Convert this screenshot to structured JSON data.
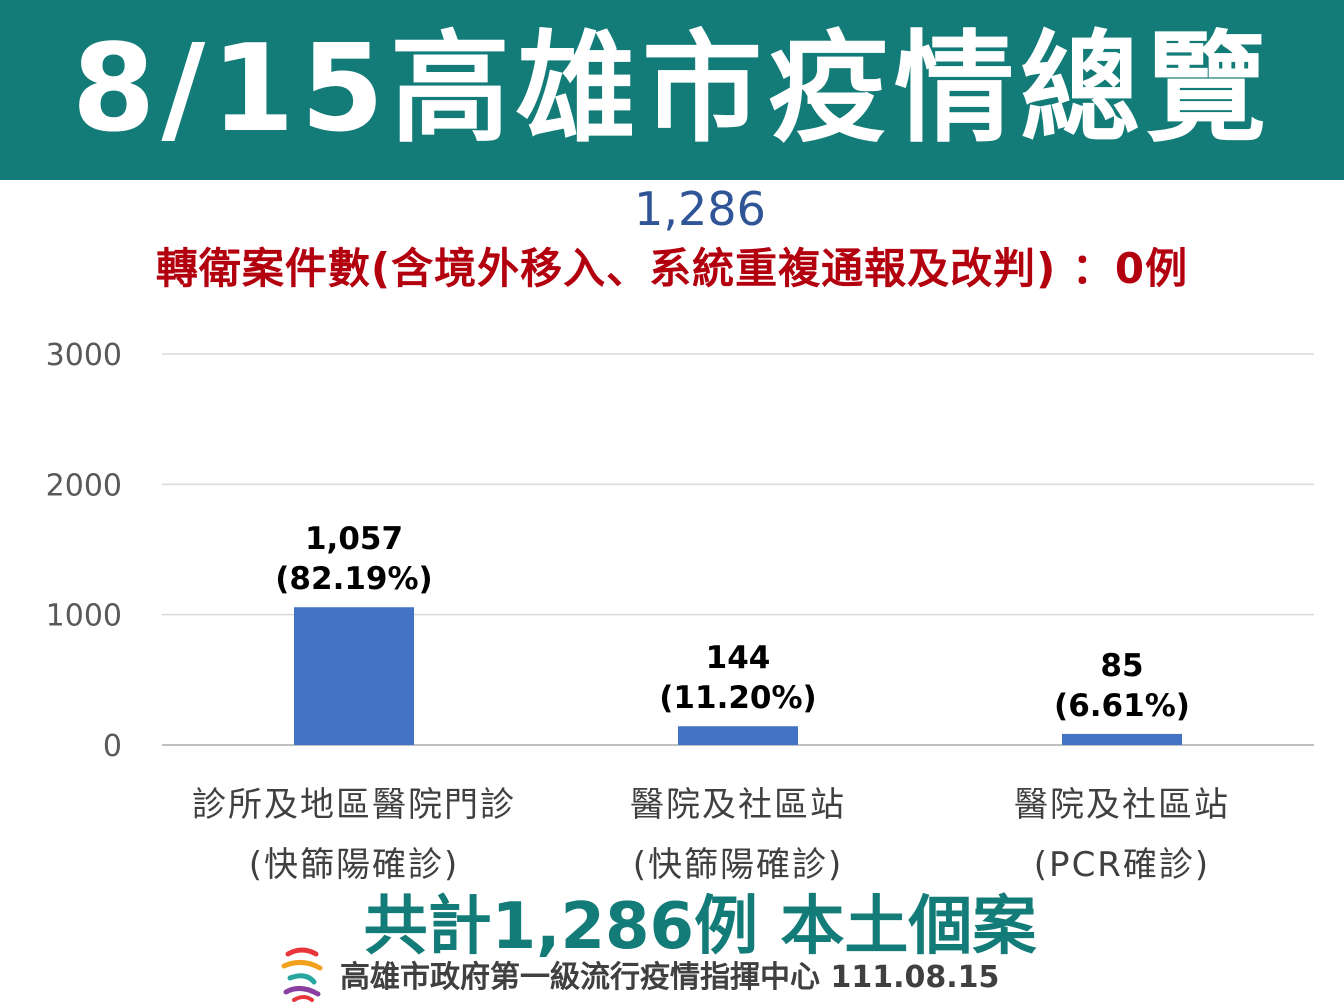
{
  "header": {
    "title": "8/15高雄市疫情總覽"
  },
  "total_top": "1,286",
  "transfer_note": "轉衛案件數(含境外移入、系統重複通報及改判) ：0例",
  "summary": "共計1,286例 本土個案",
  "footer": {
    "org_date": "高雄市政府第一級流行疫情指揮中心 111.08.15"
  },
  "colors": {
    "teal": "#137c78",
    "bar": "#4472c4",
    "red": "#b3000f",
    "blue": "#2f5597"
  },
  "chart_data": {
    "type": "bar",
    "categories": [
      [
        "診所及地區醫院門診",
        "(快篩陽確診)"
      ],
      [
        "醫院及社區站",
        "(快篩陽確診)"
      ],
      [
        "醫院及社區站",
        "(PCR確診)"
      ]
    ],
    "values": [
      1057,
      144,
      85
    ],
    "data_labels": [
      [
        "1,057",
        "(82.19%)"
      ],
      [
        "144",
        "(11.20%)"
      ],
      [
        "85",
        "(6.61%)"
      ]
    ],
    "yticks": [
      0,
      1000,
      2000,
      3000
    ],
    "ylim": [
      0,
      3000
    ],
    "grid": true
  }
}
